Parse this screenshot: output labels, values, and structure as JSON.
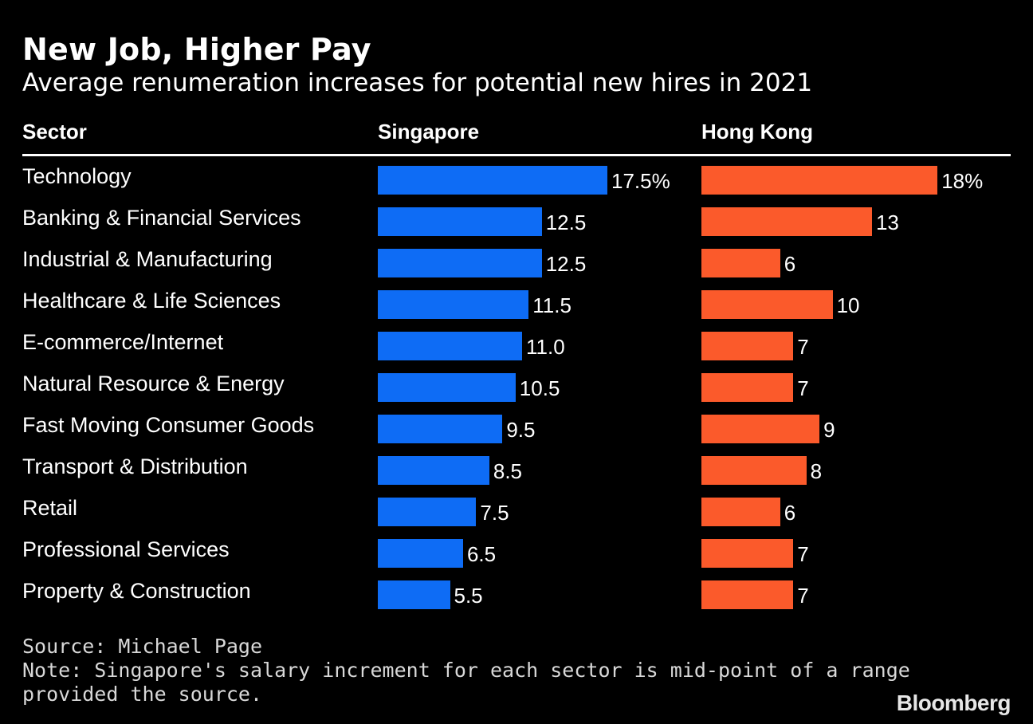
{
  "chart_data": {
    "type": "bar",
    "orientation": "horizontal",
    "title": "New Job, Higher Pay",
    "subtitle": "Average renumeration increases for potential new hires in 2021",
    "category_header": "Sector",
    "categories": [
      "Technology",
      "Banking & Financial Services",
      "Industrial & Manufacturing",
      "Healthcare & Life Sciences",
      "E-commerce/Internet",
      "Natural Resource & Energy",
      "Fast Moving Consumer Goods",
      "Transport & Distribution",
      "Retail",
      "Professional Services",
      "Property & Construction"
    ],
    "series": [
      {
        "name": "Singapore",
        "color": "#0e6cf5",
        "values": [
          17.5,
          12.5,
          12.5,
          11.5,
          11.0,
          10.5,
          9.5,
          8.5,
          7.5,
          6.5,
          5.5
        ],
        "labels": [
          "17.5%",
          "12.5",
          "12.5",
          "11.5",
          "11.0",
          "10.5",
          "9.5",
          "8.5",
          "7.5",
          "6.5",
          "5.5"
        ]
      },
      {
        "name": "Hong Kong",
        "color": "#fb5a2b",
        "values": [
          18,
          13,
          6,
          10,
          7,
          7,
          9,
          8,
          6,
          7,
          7
        ],
        "labels": [
          "18%",
          "13",
          "6",
          "10",
          "7",
          "7",
          "9",
          "8",
          "6",
          "7",
          "7"
        ]
      }
    ],
    "xlim": [
      0,
      18
    ],
    "source": "Source: Michael Page",
    "note_line1": "Note: Singapore's salary increment for each sector is mid-point of a range",
    "note_line2": "provided the source.",
    "brand": "Bloomberg"
  }
}
